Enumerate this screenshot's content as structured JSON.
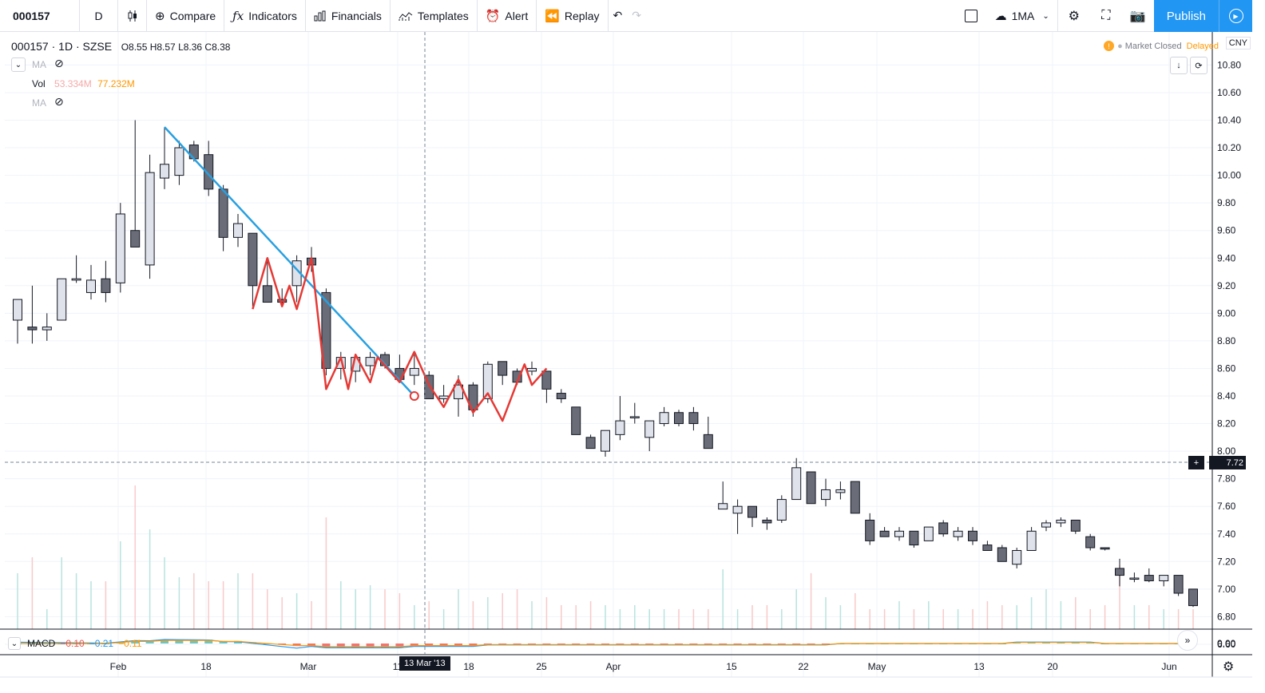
{
  "toolbar": {
    "symbol": "000157",
    "interval": "D",
    "compare": "Compare",
    "indicators": "Indicators",
    "financials": "Financials",
    "templates": "Templates",
    "alert": "Alert",
    "replay": "Replay",
    "ma_select": "1MA",
    "publish": "Publish"
  },
  "legend": {
    "symbol_line": "000157 · 1D · SZSE",
    "ohlc": "O8.55  H8.57  L8.36  C8.38",
    "ma": "MA",
    "vol": "Vol",
    "vol_v1": "53.334M",
    "vol_v2": "77.232M",
    "ma2": "MA"
  },
  "status": {
    "market": "Market Closed",
    "delayed": "Delayed",
    "currency": "CNY"
  },
  "crosshair": {
    "price": "7.72",
    "date": "13 Mar '13"
  },
  "macd": {
    "label": "MACD",
    "v1": "−0.10",
    "v2": "−0.21",
    "v3": "−0.11",
    "zero": "0.00"
  },
  "chart_data": {
    "type": "candlestick",
    "y_ticks": [
      "10.80",
      "10.60",
      "10.40",
      "10.20",
      "10.00",
      "9.80",
      "9.60",
      "9.40",
      "9.20",
      "9.00",
      "8.80",
      "8.60",
      "8.40",
      "8.20",
      "8.00",
      "7.80",
      "7.60",
      "7.40",
      "7.20",
      "7.00",
      "6.80",
      "6.60"
    ],
    "x_ticks": [
      "Feb",
      "18",
      "Mar",
      "11",
      "18",
      "25",
      "Apr",
      "15",
      "22",
      "May",
      "13",
      "20",
      "Jun"
    ],
    "ylim": [
      6.5,
      10.85
    ],
    "candles": [
      {
        "o": 8.95,
        "h": 9.1,
        "l": 8.78,
        "c": 9.1
      },
      {
        "o": 8.9,
        "h": 9.2,
        "l": 8.78,
        "c": 8.88
      },
      {
        "o": 8.88,
        "h": 9.0,
        "l": 8.8,
        "c": 8.9
      },
      {
        "o": 8.95,
        "h": 9.25,
        "l": 8.95,
        "c": 9.25
      },
      {
        "o": 9.24,
        "h": 9.42,
        "l": 9.22,
        "c": 9.25
      },
      {
        "o": 9.15,
        "h": 9.35,
        "l": 9.1,
        "c": 9.24
      },
      {
        "o": 9.25,
        "h": 9.38,
        "l": 9.08,
        "c": 9.15
      },
      {
        "o": 9.22,
        "h": 9.8,
        "l": 9.15,
        "c": 9.72
      },
      {
        "o": 9.6,
        "h": 10.4,
        "l": 9.48,
        "c": 9.48
      },
      {
        "o": 9.35,
        "h": 10.15,
        "l": 9.25,
        "c": 10.02
      },
      {
        "o": 9.98,
        "h": 10.35,
        "l": 9.9,
        "c": 10.08
      },
      {
        "o": 10.0,
        "h": 10.25,
        "l": 9.93,
        "c": 10.2
      },
      {
        "o": 10.22,
        "h": 10.25,
        "l": 10.1,
        "c": 10.12
      },
      {
        "o": 10.15,
        "h": 10.25,
        "l": 9.85,
        "c": 9.9
      },
      {
        "o": 9.9,
        "h": 9.93,
        "l": 9.45,
        "c": 9.55
      },
      {
        "o": 9.55,
        "h": 9.72,
        "l": 9.48,
        "c": 9.65
      },
      {
        "o": 9.58,
        "h": 9.58,
        "l": 9.05,
        "c": 9.2
      },
      {
        "o": 9.2,
        "h": 9.38,
        "l": 9.08,
        "c": 9.08
      },
      {
        "o": 9.1,
        "h": 9.18,
        "l": 9.05,
        "c": 9.08
      },
      {
        "o": 9.2,
        "h": 9.42,
        "l": 9.08,
        "c": 9.38
      },
      {
        "o": 9.4,
        "h": 9.48,
        "l": 9.3,
        "c": 9.35
      },
      {
        "o": 9.15,
        "h": 9.18,
        "l": 8.55,
        "c": 8.6
      },
      {
        "o": 8.6,
        "h": 8.72,
        "l": 8.52,
        "c": 8.68
      },
      {
        "o": 8.58,
        "h": 8.7,
        "l": 8.5,
        "c": 8.68
      },
      {
        "o": 8.62,
        "h": 8.72,
        "l": 8.55,
        "c": 8.68
      },
      {
        "o": 8.7,
        "h": 8.72,
        "l": 8.6,
        "c": 8.62
      },
      {
        "o": 8.6,
        "h": 8.7,
        "l": 8.5,
        "c": 8.52
      },
      {
        "o": 8.55,
        "h": 8.7,
        "l": 8.48,
        "c": 8.6
      },
      {
        "o": 8.55,
        "h": 8.58,
        "l": 8.4,
        "c": 8.38
      },
      {
        "o": 8.38,
        "h": 8.48,
        "l": 8.35,
        "c": 8.4
      },
      {
        "o": 8.38,
        "h": 8.55,
        "l": 8.25,
        "c": 8.48
      },
      {
        "o": 8.48,
        "h": 8.5,
        "l": 8.25,
        "c": 8.3
      },
      {
        "o": 8.38,
        "h": 8.65,
        "l": 8.35,
        "c": 8.63
      },
      {
        "o": 8.65,
        "h": 8.65,
        "l": 8.48,
        "c": 8.55
      },
      {
        "o": 8.58,
        "h": 8.6,
        "l": 8.48,
        "c": 8.5
      },
      {
        "o": 8.58,
        "h": 8.65,
        "l": 8.55,
        "c": 8.6
      },
      {
        "o": 8.58,
        "h": 8.58,
        "l": 8.35,
        "c": 8.45
      },
      {
        "o": 8.42,
        "h": 8.45,
        "l": 8.35,
        "c": 8.38
      },
      {
        "o": 8.32,
        "h": 8.32,
        "l": 8.12,
        "c": 8.12
      },
      {
        "o": 8.1,
        "h": 8.12,
        "l": 8.02,
        "c": 8.02
      },
      {
        "o": 8.0,
        "h": 8.15,
        "l": 7.96,
        "c": 8.15
      },
      {
        "o": 8.12,
        "h": 8.4,
        "l": 8.08,
        "c": 8.22
      },
      {
        "o": 8.25,
        "h": 8.35,
        "l": 8.2,
        "c": 8.25
      },
      {
        "o": 8.1,
        "h": 8.22,
        "l": 8.0,
        "c": 8.22
      },
      {
        "o": 8.2,
        "h": 8.32,
        "l": 8.18,
        "c": 8.28
      },
      {
        "o": 8.28,
        "h": 8.3,
        "l": 8.18,
        "c": 8.2
      },
      {
        "o": 8.28,
        "h": 8.32,
        "l": 8.15,
        "c": 8.2
      },
      {
        "o": 8.12,
        "h": 8.25,
        "l": 8.02,
        "c": 8.02
      },
      {
        "o": 7.58,
        "h": 7.78,
        "l": 7.58,
        "c": 7.62
      },
      {
        "o": 7.55,
        "h": 7.65,
        "l": 7.4,
        "c": 7.6
      },
      {
        "o": 7.6,
        "h": 7.6,
        "l": 7.45,
        "c": 7.52
      },
      {
        "o": 7.5,
        "h": 7.52,
        "l": 7.43,
        "c": 7.48
      },
      {
        "o": 7.5,
        "h": 7.68,
        "l": 7.48,
        "c": 7.65
      },
      {
        "o": 7.65,
        "h": 7.95,
        "l": 7.65,
        "c": 7.88
      },
      {
        "o": 7.85,
        "h": 7.85,
        "l": 7.62,
        "c": 7.62
      },
      {
        "o": 7.65,
        "h": 7.8,
        "l": 7.6,
        "c": 7.72
      },
      {
        "o": 7.7,
        "h": 7.78,
        "l": 7.65,
        "c": 7.72
      },
      {
        "o": 7.78,
        "h": 7.78,
        "l": 7.55,
        "c": 7.55
      },
      {
        "o": 7.5,
        "h": 7.55,
        "l": 7.32,
        "c": 7.35
      },
      {
        "o": 7.42,
        "h": 7.45,
        "l": 7.38,
        "c": 7.38
      },
      {
        "o": 7.38,
        "h": 7.45,
        "l": 7.35,
        "c": 7.42
      },
      {
        "o": 7.42,
        "h": 7.42,
        "l": 7.3,
        "c": 7.32
      },
      {
        "o": 7.35,
        "h": 7.45,
        "l": 7.35,
        "c": 7.45
      },
      {
        "o": 7.48,
        "h": 7.5,
        "l": 7.38,
        "c": 7.4
      },
      {
        "o": 7.38,
        "h": 7.45,
        "l": 7.35,
        "c": 7.42
      },
      {
        "o": 7.42,
        "h": 7.45,
        "l": 7.32,
        "c": 7.35
      },
      {
        "o": 7.32,
        "h": 7.35,
        "l": 7.28,
        "c": 7.28
      },
      {
        "o": 7.3,
        "h": 7.32,
        "l": 7.2,
        "c": 7.2
      },
      {
        "o": 7.18,
        "h": 7.3,
        "l": 7.15,
        "c": 7.28
      },
      {
        "o": 7.28,
        "h": 7.45,
        "l": 7.28,
        "c": 7.42
      },
      {
        "o": 7.45,
        "h": 7.5,
        "l": 7.42,
        "c": 7.48
      },
      {
        "o": 7.48,
        "h": 7.52,
        "l": 7.45,
        "c": 7.5
      },
      {
        "o": 7.5,
        "h": 7.5,
        "l": 7.4,
        "c": 7.42
      },
      {
        "o": 7.38,
        "h": 7.4,
        "l": 7.28,
        "c": 7.3
      },
      {
        "o": 7.3,
        "h": 7.3,
        "l": 7.28,
        "c": 7.29
      },
      {
        "o": 7.15,
        "h": 7.22,
        "l": 7.02,
        "c": 7.1
      },
      {
        "o": 7.08,
        "h": 7.12,
        "l": 7.05,
        "c": 7.08
      },
      {
        "o": 7.1,
        "h": 7.15,
        "l": 7.05,
        "c": 7.06
      },
      {
        "o": 7.06,
        "h": 7.1,
        "l": 7.02,
        "c": 7.1
      },
      {
        "o": 7.1,
        "h": 7.1,
        "l": 6.95,
        "c": 6.97
      },
      {
        "o": 7.0,
        "h": 7.0,
        "l": 6.87,
        "c": 6.88
      }
    ],
    "volume": [
      14,
      18,
      5,
      18,
      14,
      12,
      12,
      22,
      36,
      25,
      18,
      13,
      14,
      12,
      12,
      14,
      14,
      10,
      8,
      9,
      7,
      28,
      12,
      10,
      11,
      10,
      9,
      6,
      7,
      5,
      10,
      7,
      8,
      9,
      10,
      7,
      8,
      6,
      6,
      7,
      6,
      5,
      6,
      5,
      5,
      5,
      5,
      5,
      15,
      5,
      6,
      6,
      5,
      10,
      14,
      8,
      6,
      9,
      5,
      5,
      7,
      5,
      7,
      5,
      5,
      5,
      7,
      6,
      6,
      8,
      10,
      7,
      8,
      5,
      6,
      16,
      6,
      6,
      5,
      5,
      5
    ],
    "annotations": [
      {
        "type": "trend-line",
        "color": "#29a0e0",
        "from": {
          "bar": 10,
          "price": 10.35
        },
        "to": {
          "bar": 27,
          "price": 8.4
        }
      },
      {
        "type": "polyline",
        "color": "#e53935",
        "points": [
          [
            16,
            9.03
          ],
          [
            17,
            9.4
          ],
          [
            18,
            9.05
          ],
          [
            18.5,
            9.2
          ],
          [
            19,
            9.03
          ],
          [
            20,
            9.4
          ],
          [
            21,
            8.45
          ],
          [
            22,
            8.68
          ],
          [
            22.5,
            8.45
          ],
          [
            23,
            8.7
          ],
          [
            24,
            8.5
          ],
          [
            24.5,
            8.68
          ],
          [
            25,
            8.62
          ],
          [
            26,
            8.5
          ],
          [
            27,
            8.72
          ],
          [
            28,
            8.48
          ],
          [
            29,
            8.32
          ],
          [
            30,
            8.52
          ],
          [
            31,
            8.28
          ],
          [
            32,
            8.42
          ],
          [
            33,
            8.22
          ],
          [
            34,
            8.5
          ],
          [
            34.5,
            8.63
          ],
          [
            35,
            8.48
          ],
          [
            36,
            8.6
          ]
        ]
      }
    ]
  }
}
